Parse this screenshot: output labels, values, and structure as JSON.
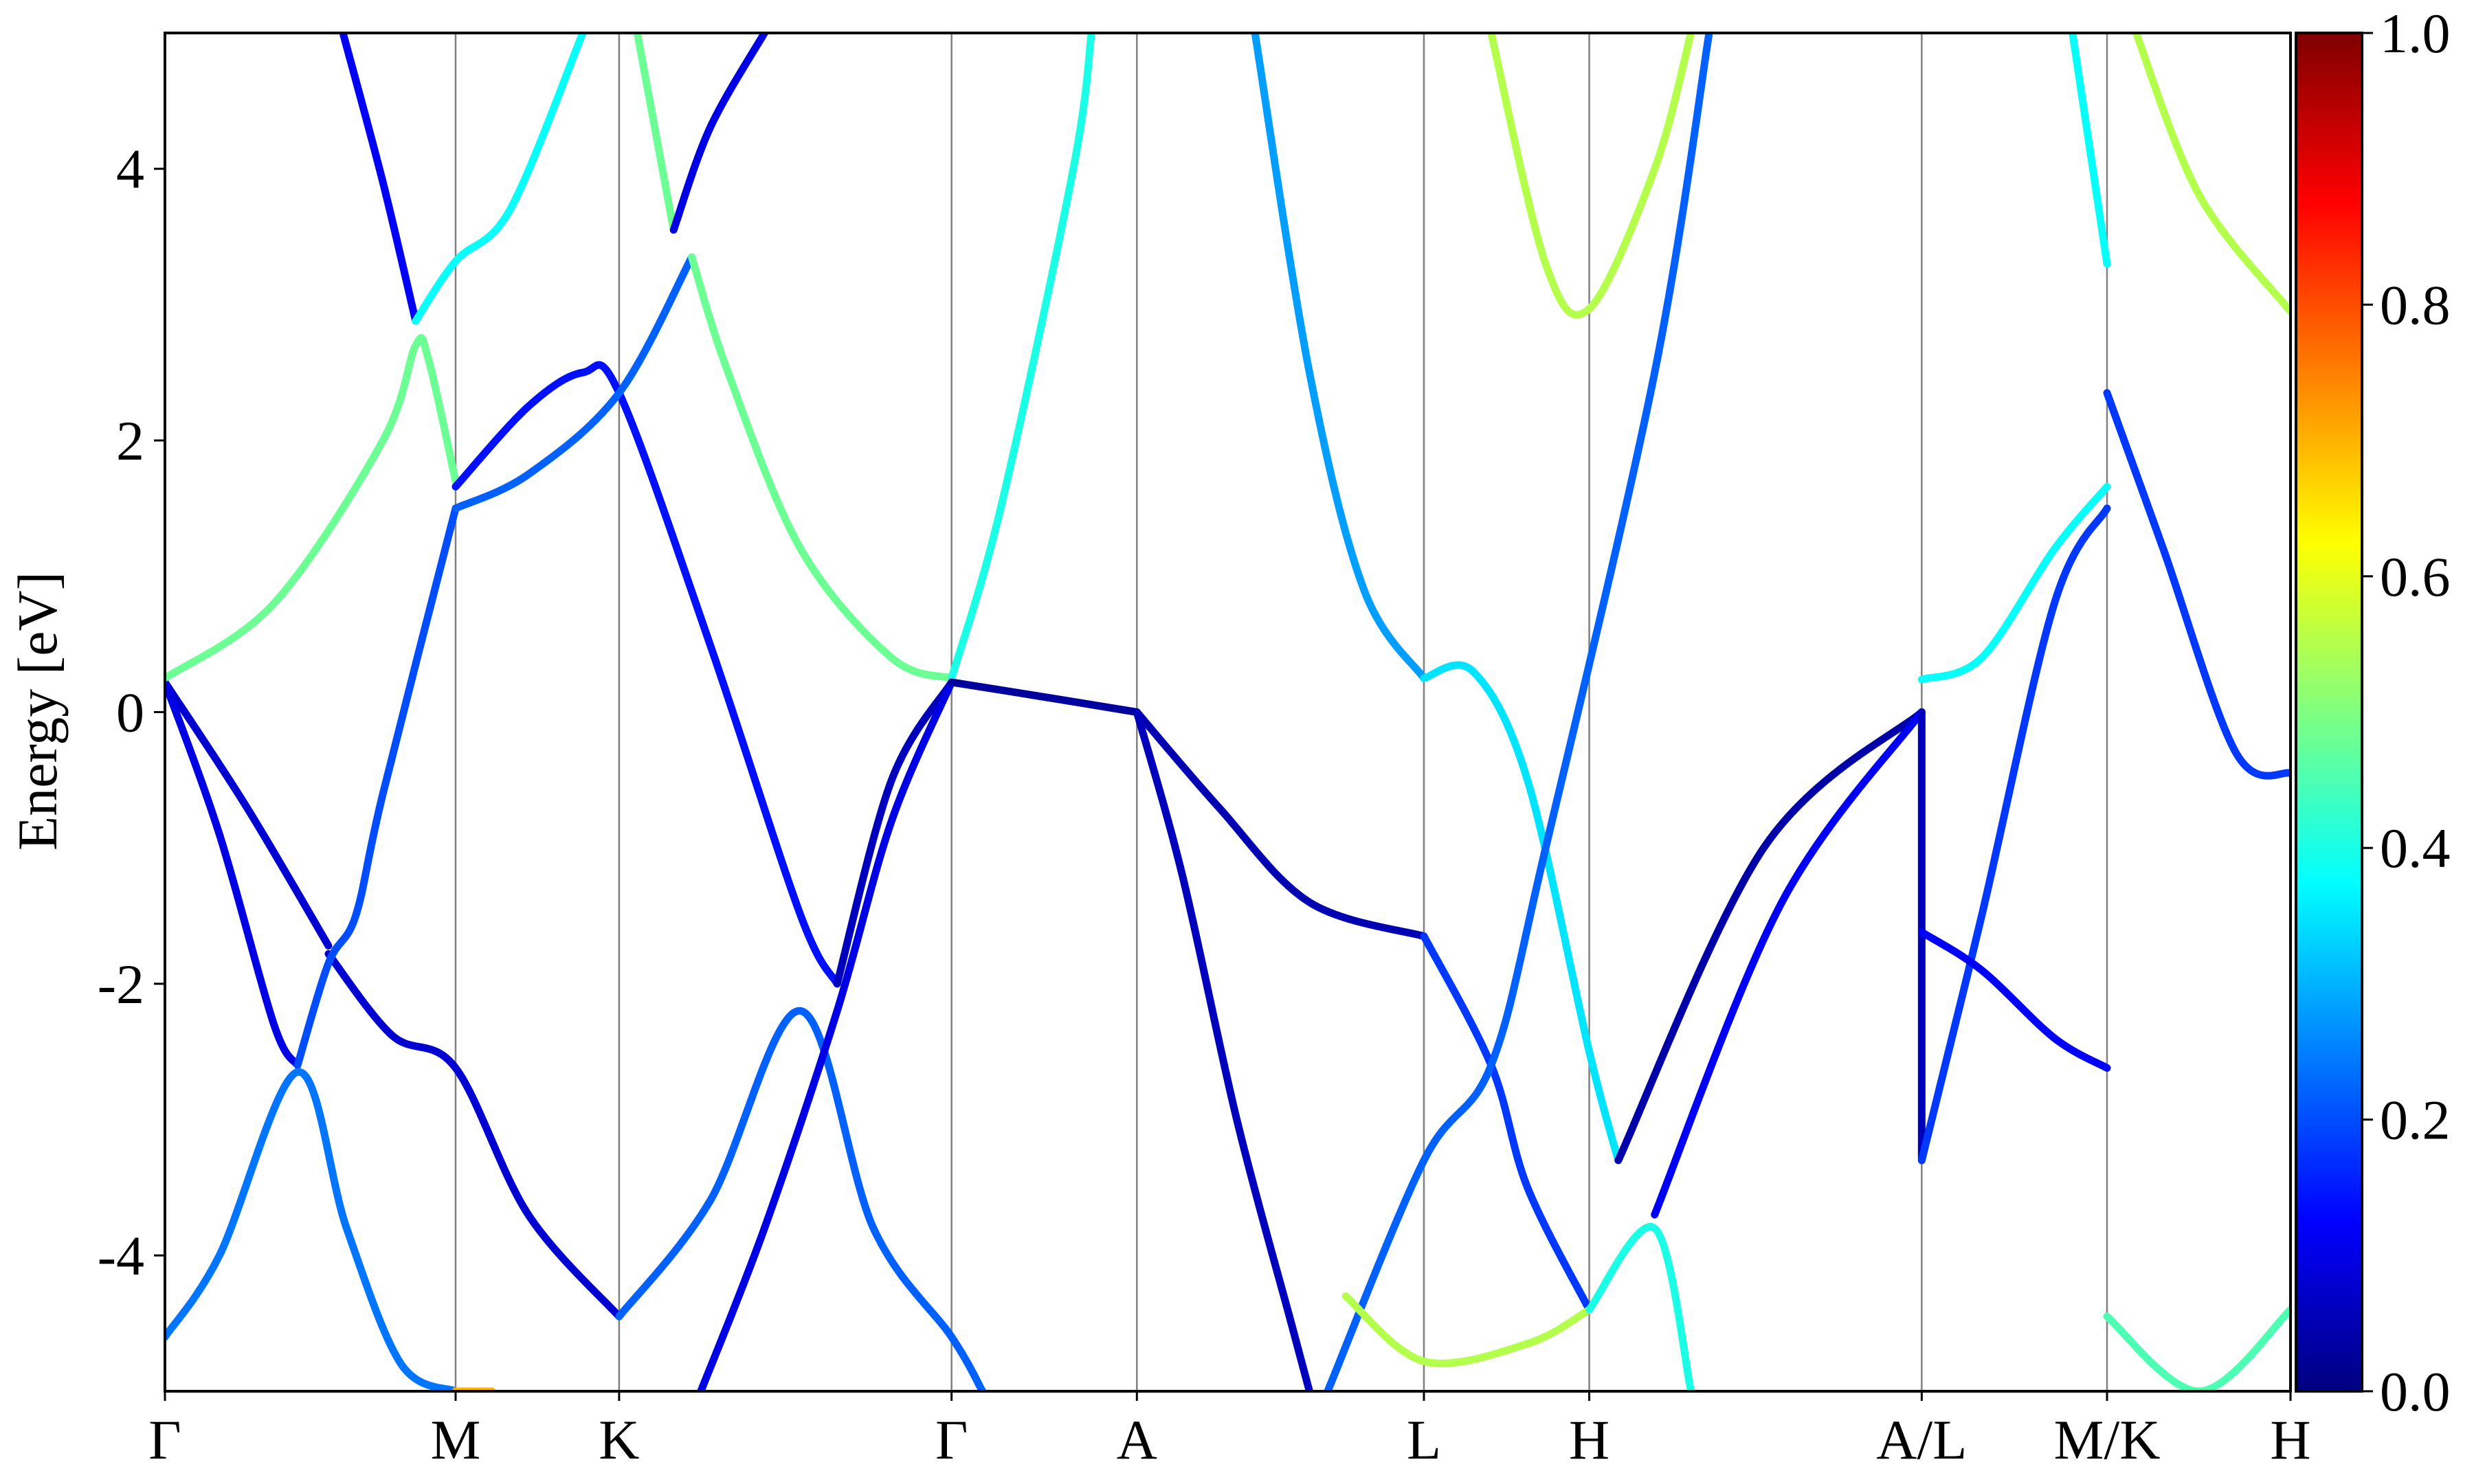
{
  "chart_data": {
    "type": "line",
    "title": "",
    "xlabel": "",
    "ylabel": "Energy [eV]",
    "ylim": [
      -5,
      5
    ],
    "yticks": [
      {
        "value": 4,
        "label": "4"
      },
      {
        "value": 2,
        "label": "2"
      },
      {
        "value": 0,
        "label": "0"
      },
      {
        "value": -2,
        "label": "-2"
      },
      {
        "value": -4,
        "label": "-4"
      }
    ],
    "xlim": [
      0,
      11.7
    ],
    "high_symmetry_points": [
      {
        "label": "Γ",
        "k": 0.0
      },
      {
        "label": "M",
        "k": 1.6
      },
      {
        "label": "K",
        "k": 2.5
      },
      {
        "label": "Γ",
        "k": 4.33
      },
      {
        "label": "A",
        "k": 5.35
      },
      {
        "label": "L",
        "k": 6.93
      },
      {
        "label": "H",
        "k": 7.84
      },
      {
        "label": "A/L",
        "k": 9.67
      },
      {
        "label": "M/K",
        "k": 10.69
      },
      {
        "label": "H",
        "k": 11.7
      }
    ],
    "colorbar": {
      "colormap": "jet",
      "range": [
        0.0,
        1.0
      ],
      "ticks": [
        {
          "value": 1.0,
          "label": "1.0"
        },
        {
          "value": 0.8,
          "label": "0.8"
        },
        {
          "value": 0.6,
          "label": "0.6"
        },
        {
          "value": 0.4,
          "label": "0.4"
        },
        {
          "value": 0.2,
          "label": "0.2"
        },
        {
          "value": 0.0,
          "label": "0.0"
        }
      ]
    },
    "bands": [
      {
        "weight": 0.08,
        "points": [
          [
            0,
            0.22
          ],
          [
            0.45,
            -0.7
          ],
          [
            0.9,
            -1.72
          ]
        ]
      },
      {
        "weight": 0.08,
        "points": [
          [
            0.9,
            -1.78
          ],
          [
            1.25,
            -2.38
          ],
          [
            1.6,
            -2.62
          ],
          [
            2.0,
            -3.7
          ],
          [
            2.5,
            -4.45
          ]
        ]
      },
      {
        "weight": 0.1,
        "points": [
          [
            0,
            0.22
          ],
          [
            0.3,
            -0.9
          ],
          [
            0.6,
            -2.3
          ],
          [
            0.73,
            -2.6
          ]
        ]
      },
      {
        "weight": 0.2,
        "points": [
          [
            0.73,
            -2.6
          ],
          [
            0.9,
            -1.85
          ],
          [
            1.05,
            -1.5
          ],
          [
            1.2,
            -0.6
          ],
          [
            1.6,
            1.5
          ]
        ]
      },
      {
        "weight": 0.24,
        "points": [
          [
            0,
            -4.6
          ],
          [
            0.3,
            -4.0
          ],
          [
            0.73,
            -2.65
          ],
          [
            1.0,
            -3.8
          ],
          [
            1.3,
            -4.8
          ],
          [
            1.6,
            -5.0
          ]
        ]
      },
      {
        "weight": 0.7,
        "points": [
          [
            1.6,
            -5.0
          ],
          [
            1.8,
            -5.0
          ]
        ]
      },
      {
        "weight": 0.48,
        "points": [
          [
            0,
            0.25
          ],
          [
            0.6,
            0.8
          ],
          [
            1.2,
            2.0
          ],
          [
            1.38,
            2.7
          ],
          [
            1.45,
            2.6
          ],
          [
            1.6,
            1.7
          ]
        ]
      },
      {
        "weight": 0.12,
        "points": [
          [
            0.98,
            5.0
          ],
          [
            1.2,
            3.9
          ],
          [
            1.38,
            2.88
          ]
        ]
      },
      {
        "weight": 0.38,
        "points": [
          [
            1.38,
            2.88
          ],
          [
            1.6,
            3.32
          ],
          [
            1.9,
            3.7
          ],
          [
            2.3,
            5.0
          ]
        ]
      },
      {
        "weight": 0.14,
        "points": [
          [
            1.6,
            1.66
          ],
          [
            2.0,
            2.25
          ],
          [
            2.3,
            2.5
          ],
          [
            2.5,
            2.35
          ],
          [
            3.0,
            0.5
          ],
          [
            3.5,
            -1.5
          ],
          [
            3.7,
            -2.0
          ]
        ]
      },
      {
        "weight": 0.22,
        "points": [
          [
            1.6,
            1.5
          ],
          [
            2.0,
            1.75
          ],
          [
            2.5,
            2.35
          ],
          [
            2.9,
            3.35
          ]
        ]
      },
      {
        "weight": 0.48,
        "points": [
          [
            2.9,
            3.35
          ],
          [
            3.1,
            2.5
          ],
          [
            3.5,
            1.2
          ],
          [
            4.0,
            0.4
          ],
          [
            4.33,
            0.25
          ]
        ]
      },
      {
        "weight": 0.48,
        "points": [
          [
            2.6,
            5.0
          ],
          [
            2.8,
            3.55
          ]
        ]
      },
      {
        "weight": 0.1,
        "points": [
          [
            2.8,
            3.55
          ],
          [
            3.0,
            4.3
          ],
          [
            3.3,
            5.0
          ]
        ]
      },
      {
        "weight": 0.22,
        "points": [
          [
            2.5,
            -4.45
          ],
          [
            3.0,
            -3.6
          ],
          [
            3.5,
            -2.2
          ],
          [
            3.9,
            -3.8
          ],
          [
            4.33,
            -4.6
          ],
          [
            4.5,
            -5.0
          ]
        ]
      },
      {
        "weight": 0.06,
        "points": [
          [
            3.7,
            -2.0
          ],
          [
            4.0,
            -0.5
          ],
          [
            4.33,
            0.22
          ]
        ]
      },
      {
        "weight": 0.1,
        "points": [
          [
            2.95,
            -5.0
          ],
          [
            3.3,
            -3.8
          ],
          [
            3.7,
            -2.2
          ],
          [
            4.0,
            -0.8
          ],
          [
            4.33,
            0.22
          ]
        ]
      },
      {
        "weight": 0.4,
        "points": [
          [
            4.33,
            0.25
          ],
          [
            4.6,
            1.5
          ],
          [
            5.0,
            4.0
          ],
          [
            5.1,
            5.0
          ]
        ]
      },
      {
        "weight": 0.03,
        "points": [
          [
            4.33,
            0.22
          ],
          [
            4.8,
            0.12
          ],
          [
            5.35,
            0.0
          ]
        ]
      },
      {
        "weight": 0.05,
        "points": [
          [
            5.35,
            0.0
          ],
          [
            5.8,
            -0.7
          ],
          [
            6.3,
            -1.4
          ],
          [
            6.93,
            -1.65
          ]
        ]
      },
      {
        "weight": 0.18,
        "points": [
          [
            6.93,
            -1.65
          ],
          [
            7.3,
            -2.6
          ],
          [
            7.5,
            -3.5
          ],
          [
            7.84,
            -4.4
          ]
        ]
      },
      {
        "weight": 0.06,
        "points": [
          [
            5.35,
            0.0
          ],
          [
            5.6,
            -1.2
          ],
          [
            5.9,
            -3.0
          ],
          [
            6.2,
            -4.5
          ],
          [
            6.3,
            -5.0
          ]
        ]
      },
      {
        "weight": 0.28,
        "points": [
          [
            6.0,
            5.0
          ],
          [
            6.3,
            2.5
          ],
          [
            6.6,
            0.9
          ],
          [
            6.93,
            0.25
          ]
        ]
      },
      {
        "weight": 0.35,
        "points": [
          [
            6.93,
            0.25
          ],
          [
            7.2,
            0.3
          ],
          [
            7.5,
            -0.5
          ],
          [
            7.84,
            -2.5
          ],
          [
            8.0,
            -3.3
          ]
        ]
      },
      {
        "weight": 0.22,
        "points": [
          [
            6.4,
            -5.0
          ],
          [
            6.93,
            -3.3
          ],
          [
            7.3,
            -2.6
          ],
          [
            7.6,
            -1.0
          ],
          [
            8.2,
            2.5
          ],
          [
            8.5,
            5.0
          ]
        ]
      },
      {
        "weight": 0.55,
        "points": [
          [
            6.5,
            -4.3
          ],
          [
            6.93,
            -4.78
          ],
          [
            7.5,
            -4.65
          ],
          [
            7.84,
            -4.4
          ]
        ]
      },
      {
        "weight": 0.55,
        "points": [
          [
            7.3,
            5.0
          ],
          [
            7.6,
            3.3
          ],
          [
            7.84,
            2.97
          ],
          [
            8.2,
            4.0
          ],
          [
            8.4,
            5.0
          ]
        ]
      },
      {
        "weight": 0.4,
        "points": [
          [
            7.84,
            -4.4
          ],
          [
            8.2,
            -3.8
          ],
          [
            8.4,
            -5.0
          ]
        ]
      },
      {
        "weight": 0.04,
        "points": [
          [
            8.0,
            -3.3
          ],
          [
            8.8,
            -1.0
          ],
          [
            9.67,
            0.0
          ]
        ]
      },
      {
        "weight": 0.12,
        "points": [
          [
            8.2,
            -3.7
          ],
          [
            8.9,
            -1.4
          ],
          [
            9.67,
            0.0
          ]
        ]
      },
      {
        "weight": 0.06,
        "points": [
          [
            9.67,
            0.0
          ],
          [
            9.67,
            -3.3
          ]
        ]
      },
      {
        "weight": 0.38,
        "points": [
          [
            9.67,
            0.24
          ],
          [
            10.0,
            0.4
          ],
          [
            10.4,
            1.2
          ],
          [
            10.69,
            1.66
          ]
        ]
      },
      {
        "weight": 0.18,
        "points": [
          [
            9.67,
            -3.3
          ],
          [
            10.0,
            -1.5
          ],
          [
            10.4,
            0.8
          ],
          [
            10.69,
            1.5
          ]
        ]
      },
      {
        "weight": 0.12,
        "points": [
          [
            9.67,
            -1.62
          ],
          [
            10.0,
            -1.9
          ],
          [
            10.4,
            -2.4
          ],
          [
            10.69,
            -2.62
          ]
        ]
      },
      {
        "weight": 0.18,
        "points": [
          [
            10.69,
            2.35
          ],
          [
            11.0,
            1.2
          ],
          [
            11.4,
            -0.3
          ],
          [
            11.7,
            -0.45
          ]
        ]
      },
      {
        "weight": 0.38,
        "points": [
          [
            10.5,
            5.0
          ],
          [
            10.69,
            3.3
          ]
        ]
      },
      {
        "weight": 0.55,
        "points": [
          [
            10.85,
            5.0
          ],
          [
            11.2,
            3.8
          ],
          [
            11.7,
            2.95
          ]
        ]
      },
      {
        "weight": 0.45,
        "points": [
          [
            10.69,
            -4.45
          ],
          [
            11.2,
            -5.0
          ],
          [
            11.7,
            -4.4
          ]
        ]
      }
    ]
  }
}
